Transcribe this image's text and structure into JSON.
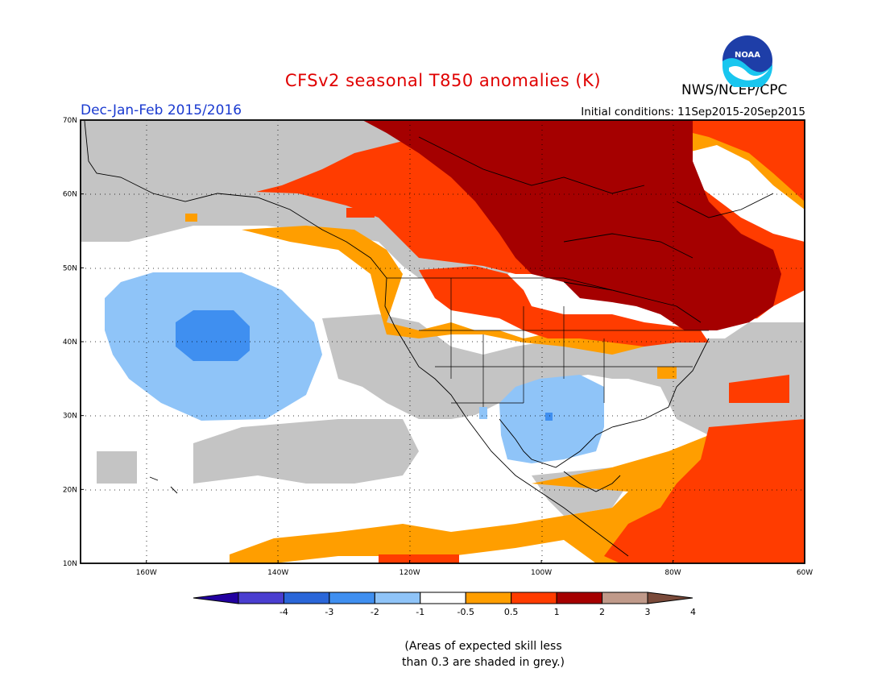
{
  "title": "CFSv2 seasonal T850 anomalies (K)",
  "period": "Dec-Jan-Feb 2015/2016",
  "initial_conditions": "Initial conditions: 11Sep2015-20Sep2015",
  "agency": "NWS/NCEP/CPC",
  "logo_text": "NOAA",
  "map": {
    "projection": "lat-lon",
    "lon_range": [
      -170,
      -60
    ],
    "lat_range": [
      10,
      70
    ],
    "lat_labels": [
      "70N",
      "60N",
      "50N",
      "40N",
      "30N",
      "20N",
      "10N"
    ],
    "lon_labels": [
      "160W",
      "140W",
      "120W",
      "100W",
      "80W",
      "60W"
    ],
    "gridlines": "dotted"
  },
  "colorbar": {
    "tick_labels": [
      "-4",
      "-3",
      "-2",
      "-1",
      "-0.5",
      "0.5",
      "1",
      "2",
      "3",
      "4"
    ],
    "colors": [
      "#2200a0",
      "#4a3ed0",
      "#2a66d8",
      "#3f8ff0",
      "#8fc4f8",
      "#ffffff",
      "#ff9e00",
      "#ff3c00",
      "#a50000",
      "#c09a8a",
      "#7a4a3a"
    ]
  },
  "legend_colors": {
    "grey": "#c4c4c4",
    "dark_red": "#a50000",
    "red": "#ff3c00",
    "orange": "#ff9e00",
    "light_blue": "#8fc4f8",
    "mid_blue": "#3f8ff0"
  },
  "skill_note": {
    "line1": "(Areas of expected skill less",
    "line2": "than 0.3 are shaded in grey.)"
  }
}
